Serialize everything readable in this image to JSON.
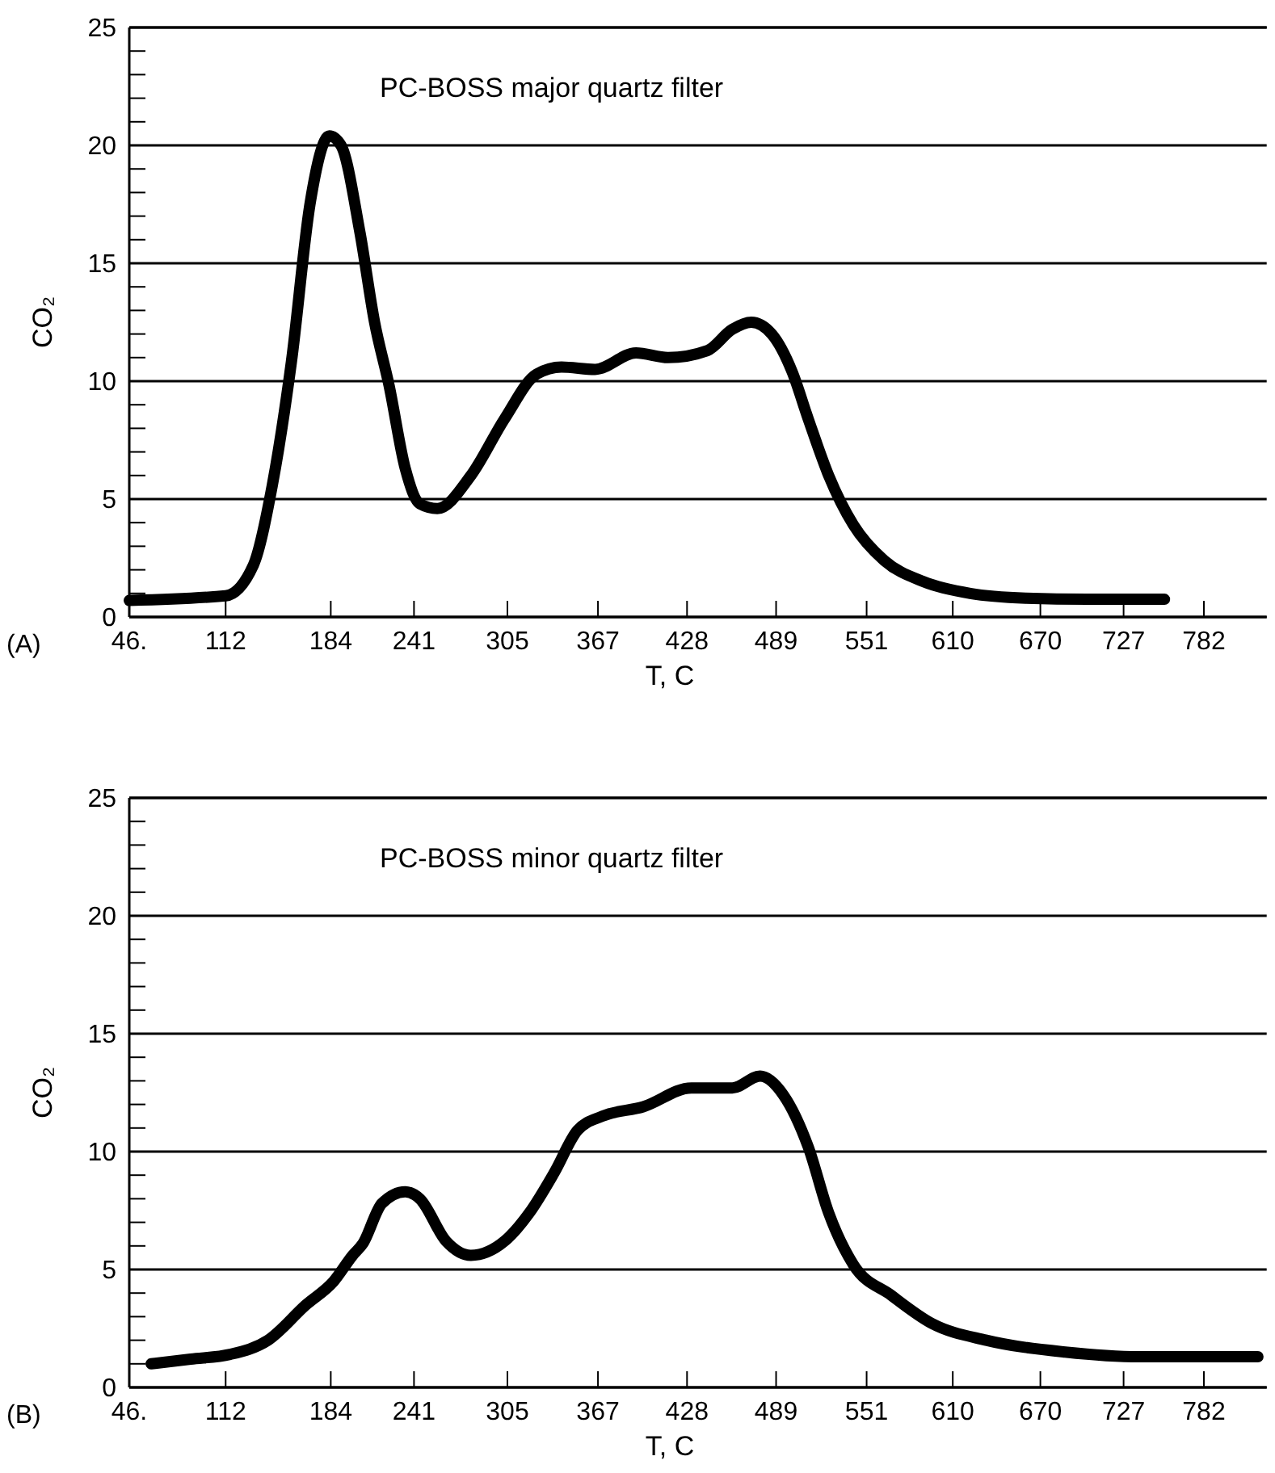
{
  "chart_data": [
    {
      "type": "line",
      "title": "PC-BOSS major quartz filter",
      "xlabel": "T, C",
      "ylabel": "CO₂",
      "annotations": [
        "(A)"
      ],
      "grid": "y",
      "xlim": [
        46,
        825
      ],
      "ylim": [
        0,
        25
      ],
      "xticks": [
        {
          "value": 46,
          "label": "46."
        },
        112,
        184,
        241,
        305,
        367,
        428,
        489,
        551,
        610,
        670,
        727,
        782
      ],
      "yticks": [
        0,
        5,
        10,
        15,
        20,
        25
      ],
      "series": [
        {
          "color": "#000000",
          "x": [
            46,
            112,
            131,
            144,
            157,
            170,
            183,
            191,
            204,
            214,
            224,
            235,
            245,
            257,
            280,
            303,
            325,
            342,
            365,
            393,
            415,
            442,
            459,
            472,
            486,
            500,
            511,
            525,
            542,
            563,
            590,
            622,
            660,
            702,
            755
          ],
          "values": [
            0.7,
            0.9,
            2.2,
            5.6,
            10.8,
            17.6,
            20.4,
            20.0,
            16.3,
            12.5,
            9.8,
            6.3,
            4.8,
            4.6,
            6.0,
            8.4,
            10.3,
            10.6,
            10.5,
            11.2,
            11.0,
            11.3,
            12.2,
            12.5,
            12.0,
            10.4,
            8.4,
            6.0,
            3.9,
            2.4,
            1.5,
            1.0,
            0.8,
            0.75,
            0.75
          ]
        }
      ]
    },
    {
      "type": "line",
      "title": "PC-BOSS minor quartz filter",
      "xlabel": "T, C",
      "ylabel": "CO₂",
      "annotations": [
        "(B)"
      ],
      "grid": "y",
      "xlim": [
        46,
        825
      ],
      "ylim": [
        0,
        25
      ],
      "xticks": [
        {
          "value": 46,
          "label": "46."
        },
        112,
        184,
        241,
        305,
        367,
        428,
        489,
        551,
        610,
        670,
        727,
        782
      ],
      "yticks": [
        0,
        5,
        10,
        15,
        20,
        25
      ],
      "series": [
        {
          "color": "#000000",
          "x": [
            61,
            88,
            115,
            141,
            167,
            186,
            199,
            206,
            219,
            235,
            245,
            263,
            280,
            303,
            320,
            337,
            353,
            370,
            398,
            431,
            459,
            478,
            494,
            511,
            525,
            542,
            568,
            596,
            633,
            687,
            738,
            819
          ],
          "values": [
            1.0,
            1.2,
            1.4,
            2.0,
            3.5,
            4.5,
            5.6,
            6.1,
            7.8,
            8.3,
            8.0,
            6.2,
            5.6,
            6.2,
            7.4,
            9.1,
            10.9,
            11.5,
            11.9,
            12.7,
            12.7,
            13.2,
            12.4,
            10.2,
            7.4,
            5.2,
            3.9,
            2.7,
            2.0,
            1.5,
            1.3,
            1.3
          ]
        }
      ]
    }
  ]
}
